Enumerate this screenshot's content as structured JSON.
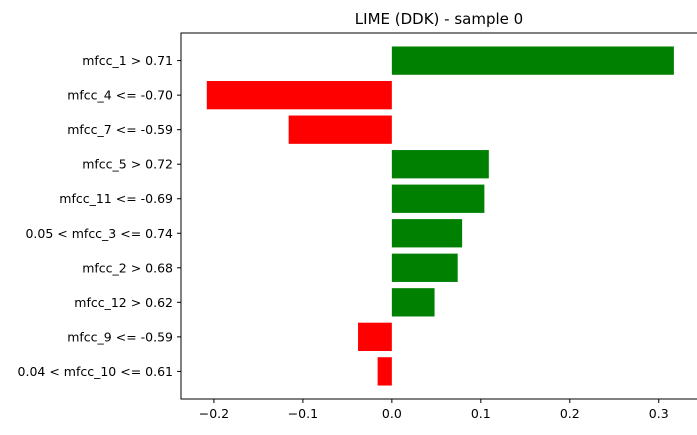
{
  "chart_data": {
    "type": "bar",
    "orientation": "horizontal",
    "title": "LIME (DDK) - sample 0",
    "xlabel": "",
    "ylabel": "",
    "xlim": [
      -0.237,
      0.343
    ],
    "xticks": [
      -0.2,
      -0.1,
      0.0,
      0.1,
      0.2,
      0.3
    ],
    "xtick_labels": [
      "−0.2",
      "−0.1",
      "0.0",
      "0.1",
      "0.2",
      "0.3"
    ],
    "categories": [
      "mfcc_1 > 0.71",
      "mfcc_4 <= -0.70",
      "mfcc_7 <= -0.59",
      "mfcc_5 > 0.72",
      "mfcc_11 <= -0.69",
      "0.05 < mfcc_3 <= 0.74",
      "mfcc_2 > 0.68",
      "mfcc_12 > 0.62",
      "mfcc_9 <= -0.59",
      "0.04 < mfcc_10 <= 0.61"
    ],
    "values": [
      0.317,
      -0.208,
      -0.116,
      0.109,
      0.104,
      0.079,
      0.074,
      0.048,
      -0.038,
      -0.016
    ],
    "colors": {
      "positive": "#008000",
      "negative": "#ff0000"
    },
    "grid": false,
    "legend": "none"
  }
}
